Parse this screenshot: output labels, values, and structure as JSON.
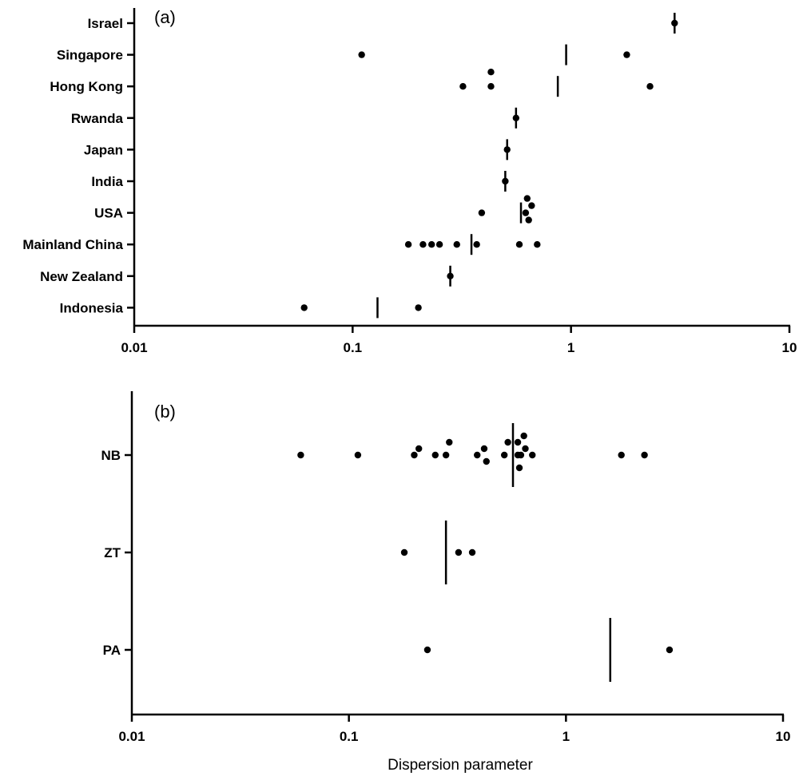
{
  "chart_data": [
    {
      "type": "scatter",
      "panel_label": "(a)",
      "xscale": "log",
      "xlim": [
        0.01,
        10
      ],
      "xticks": [
        "0.01",
        "0.1",
        "1",
        "10"
      ],
      "xlabel": "",
      "categories": [
        "Israel",
        "Singapore",
        "Hong Kong",
        "Rwanda",
        "Japan",
        "India",
        "USA",
        "Mainland China",
        "New Zealand",
        "Indonesia"
      ],
      "points": [
        {
          "category": "Israel",
          "values": [
            2.98
          ]
        },
        {
          "category": "Singapore",
          "values": [
            0.11,
            1.8
          ]
        },
        {
          "category": "Hong Kong",
          "values": [
            0.32,
            0.43,
            0.43,
            2.3
          ]
        },
        {
          "category": "Rwanda",
          "values": [
            0.56
          ]
        },
        {
          "category": "Japan",
          "values": [
            0.51
          ]
        },
        {
          "category": "India",
          "values": [
            0.5
          ]
        },
        {
          "category": "USA",
          "values": [
            0.39,
            0.62,
            0.63,
            0.64,
            0.66
          ]
        },
        {
          "category": "Mainland China",
          "values": [
            0.18,
            0.21,
            0.23,
            0.25,
            0.3,
            0.37,
            0.58,
            0.7
          ]
        },
        {
          "category": "New Zealand",
          "values": [
            0.28
          ]
        },
        {
          "category": "Indonesia",
          "values": [
            0.06,
            0.2
          ]
        }
      ],
      "means": [
        {
          "category": "Israel",
          "value": 2.98
        },
        {
          "category": "Singapore",
          "value": 0.95
        },
        {
          "category": "Hong Kong",
          "value": 0.87
        },
        {
          "category": "Rwanda",
          "value": 0.56
        },
        {
          "category": "Japan",
          "value": 0.51
        },
        {
          "category": "India",
          "value": 0.5
        },
        {
          "category": "USA",
          "value": 0.59
        },
        {
          "category": "Mainland China",
          "value": 0.35
        },
        {
          "category": "New Zealand",
          "value": 0.28
        },
        {
          "category": "Indonesia",
          "value": 0.13
        }
      ]
    },
    {
      "type": "scatter",
      "panel_label": "(b)",
      "xscale": "log",
      "xlim": [
        0.01,
        10
      ],
      "xticks": [
        "0.01",
        "0.1",
        "1",
        "10"
      ],
      "xlabel": "Dispersion parameter",
      "categories": [
        "NB",
        "ZT",
        "PA"
      ],
      "points": [
        {
          "category": "NB",
          "values": [
            0.06,
            0.11,
            0.2,
            0.21,
            0.25,
            0.28,
            0.29,
            0.39,
            0.42,
            0.43,
            0.52,
            0.54,
            0.6,
            0.6,
            0.61,
            0.62,
            0.64,
            0.65,
            0.7,
            1.8,
            2.3
          ]
        },
        {
          "category": "ZT",
          "values": [
            0.18,
            0.32,
            0.37
          ]
        },
        {
          "category": "PA",
          "values": [
            0.23,
            3.0
          ]
        }
      ],
      "means": [
        {
          "category": "NB",
          "value": 0.57
        },
        {
          "category": "ZT",
          "value": 0.28
        },
        {
          "category": "PA",
          "value": 1.6
        }
      ]
    }
  ]
}
